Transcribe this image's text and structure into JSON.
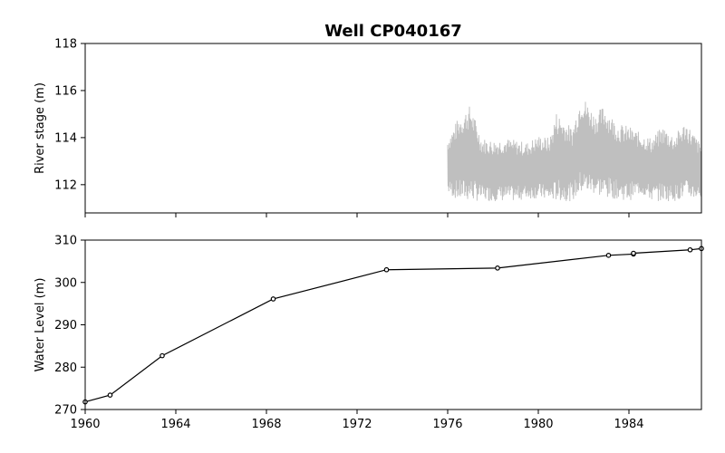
{
  "chart_data": [
    {
      "type": "line",
      "title": "Well CP040167",
      "xlabel": "",
      "ylabel": "River stage (m)",
      "xlim": [
        1960,
        1987.2
      ],
      "ylim": [
        110.8,
        118
      ],
      "yticks": [
        112,
        114,
        116,
        118
      ],
      "xticks": [
        1960,
        1964,
        1968,
        1972,
        1976,
        1980,
        1984
      ],
      "show_x_tick_labels": false,
      "grid": false,
      "series": [
        {
          "name": "",
          "color": "#bfbfbf",
          "x_start": 1976.0,
          "x_end": 1987.2,
          "samples": 700,
          "envelope": [
            {
              "x": 1976.0,
              "low": 111.6,
              "high": 114.0
            },
            {
              "x": 1976.5,
              "low": 111.3,
              "high": 114.9
            },
            {
              "x": 1977.0,
              "low": 111.3,
              "high": 115.4
            },
            {
              "x": 1977.5,
              "low": 111.3,
              "high": 114.0
            },
            {
              "x": 1978.0,
              "low": 111.3,
              "high": 113.9
            },
            {
              "x": 1978.5,
              "low": 111.3,
              "high": 114.0
            },
            {
              "x": 1979.0,
              "low": 111.3,
              "high": 113.9
            },
            {
              "x": 1979.5,
              "low": 111.4,
              "high": 113.8
            },
            {
              "x": 1980.0,
              "low": 111.4,
              "high": 114.1
            },
            {
              "x": 1980.5,
              "low": 111.3,
              "high": 114.0
            },
            {
              "x": 1980.8,
              "low": 111.3,
              "high": 115.1
            },
            {
              "x": 1981.5,
              "low": 111.3,
              "high": 114.4
            },
            {
              "x": 1981.9,
              "low": 111.6,
              "high": 115.9
            },
            {
              "x": 1982.5,
              "low": 111.6,
              "high": 115.0
            },
            {
              "x": 1982.9,
              "low": 111.4,
              "high": 115.4
            },
            {
              "x": 1983.5,
              "low": 111.4,
              "high": 114.6
            },
            {
              "x": 1984.0,
              "low": 111.3,
              "high": 114.5
            },
            {
              "x": 1984.5,
              "low": 111.6,
              "high": 114.2
            },
            {
              "x": 1985.0,
              "low": 111.3,
              "high": 114.0
            },
            {
              "x": 1985.5,
              "low": 111.3,
              "high": 114.5
            },
            {
              "x": 1986.0,
              "low": 111.3,
              "high": 114.1
            },
            {
              "x": 1986.5,
              "low": 111.4,
              "high": 114.7
            },
            {
              "x": 1987.2,
              "low": 111.4,
              "high": 113.7
            }
          ]
        }
      ]
    },
    {
      "type": "line",
      "title": "",
      "xlabel": "",
      "ylabel": "Water Level (m)",
      "xlim": [
        1960,
        1987.2
      ],
      "ylim": [
        270,
        310
      ],
      "yticks": [
        270,
        280,
        290,
        300,
        310
      ],
      "xticks": [
        1960,
        1964,
        1968,
        1972,
        1976,
        1980,
        1984
      ],
      "xtick_labels": [
        "1960",
        "1964",
        "1968",
        "1972",
        "1976",
        "1980",
        "1984"
      ],
      "grid": false,
      "series": [
        {
          "name": "",
          "color": "#000000",
          "marker": "circle-open",
          "x": [
            1960.0,
            1961.1,
            1963.4,
            1968.3,
            1973.3,
            1978.2,
            1983.1,
            1984.2,
            1984.2,
            1986.7,
            1987.2
          ],
          "y": [
            271.8,
            273.4,
            282.7,
            296.1,
            303.0,
            303.4,
            306.4,
            306.7,
            306.9,
            307.7,
            308.0
          ]
        }
      ]
    }
  ]
}
